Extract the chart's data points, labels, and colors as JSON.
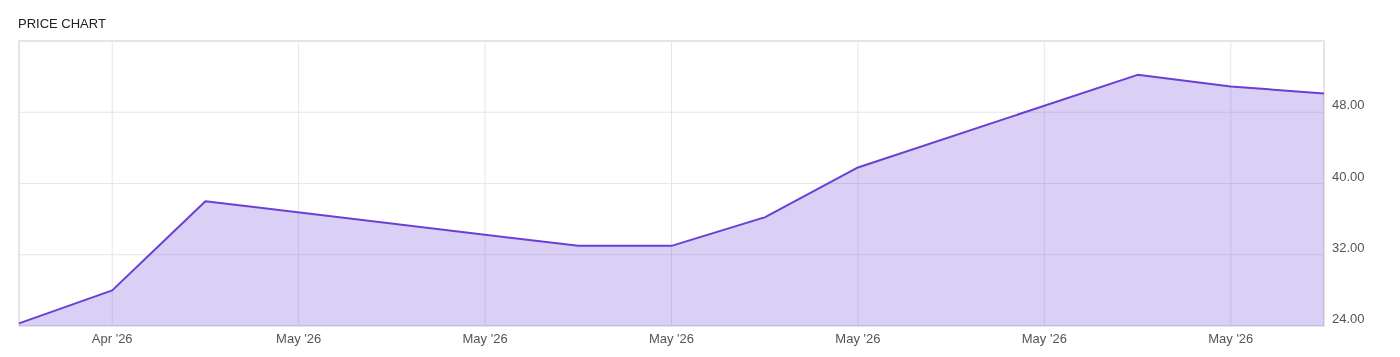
{
  "chart_data": {
    "type": "area",
    "title": "PRICE CHART",
    "categories": [
      null,
      "Apr '26",
      null,
      "May '26",
      null,
      "May '26",
      null,
      "May '26",
      null,
      "May '26",
      null,
      "May '26",
      null,
      "May '26",
      null
    ],
    "series": [
      {
        "color": "#6a3fd6",
        "values": [
          24.3,
          28.0,
          38.0,
          null,
          null,
          null,
          33.0,
          33.0,
          36.2,
          41.8,
          null,
          null,
          52.2,
          50.9,
          50.1
        ]
      }
    ],
    "ylim": [
      24,
      56
    ],
    "yticks": [
      {
        "value": 24,
        "label": "24.00"
      },
      {
        "value": 32,
        "label": "32.00"
      },
      {
        "value": 40,
        "label": "40.00"
      },
      {
        "value": 48,
        "label": "48.00"
      }
    ],
    "grid": true
  }
}
